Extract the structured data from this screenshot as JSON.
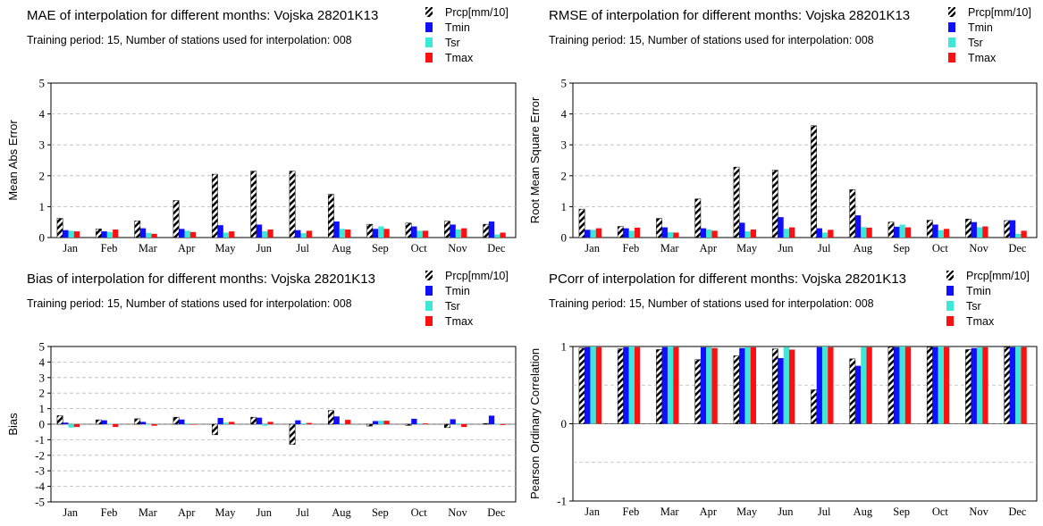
{
  "series_colors": {
    "Prcp[mm/10]": "hatched-black",
    "Tmin": "#1010ff",
    "Tsr": "#3ee8d8",
    "Tmax": "#ff1010"
  },
  "legend_labels": [
    "Prcp[mm/10]",
    "Tmin",
    "Tsr",
    "Tmax"
  ],
  "panels": [
    {
      "title": "MAE of interpolation for different months: Vojska  28201K13",
      "subtitle": "Training period: 15, Number of stations used for interpolation: 008"
    },
    {
      "title": "RMSE of interpolation for different months: Vojska  28201K13",
      "subtitle": "Training period: 15, Number of stations used for interpolation: 008"
    },
    {
      "title": "Bias of interpolation for different months: Vojska  28201K13",
      "subtitle": "Training period: 15, Number of stations used for interpolation: 008"
    },
    {
      "title": "PCorr of interpolation for different months: Vojska  28201K13",
      "subtitle": "Training period: 15, Number of stations used for interpolation: 008"
    }
  ],
  "chart_data": [
    {
      "type": "bar",
      "categories": [
        "Jan",
        "Feb",
        "Mar",
        "Apr",
        "May",
        "Jun",
        "Jul",
        "Aug",
        "Sep",
        "Oct",
        "Nov",
        "Dec"
      ],
      "ylabel": "Mean Abs Error",
      "ylim": [
        0,
        5
      ],
      "yticks": [
        "0",
        "1",
        "2",
        "3",
        "4",
        "5"
      ],
      "grid": "dashed-horizontal",
      "series": [
        {
          "name": "Prcp[mm/10]",
          "values": [
            0.62,
            0.28,
            0.54,
            1.2,
            2.05,
            2.15,
            2.15,
            1.4,
            0.43,
            0.47,
            0.53,
            0.43
          ]
        },
        {
          "name": "Tmin",
          "values": [
            0.24,
            0.2,
            0.3,
            0.28,
            0.4,
            0.42,
            0.24,
            0.52,
            0.28,
            0.36,
            0.42,
            0.52
          ]
        },
        {
          "name": "Tsr",
          "values": [
            0.22,
            0.18,
            0.15,
            0.22,
            0.16,
            0.2,
            0.14,
            0.28,
            0.36,
            0.22,
            0.26,
            0.1
          ]
        },
        {
          "name": "Tmax",
          "values": [
            0.2,
            0.26,
            0.12,
            0.18,
            0.2,
            0.26,
            0.22,
            0.26,
            0.28,
            0.22,
            0.3,
            0.16
          ]
        }
      ]
    },
    {
      "type": "bar",
      "categories": [
        "Jan",
        "Feb",
        "Mar",
        "Apr",
        "May",
        "Jun",
        "Jul",
        "Aug",
        "Sep",
        "Oct",
        "Nov",
        "Dec"
      ],
      "ylabel": "Root Mean Square Error",
      "ylim": [
        0,
        5
      ],
      "yticks": [
        "0",
        "1",
        "2",
        "3",
        "4",
        "5"
      ],
      "grid": "dashed-horizontal",
      "series": [
        {
          "name": "Prcp[mm/10]",
          "values": [
            0.92,
            0.36,
            0.62,
            1.25,
            2.28,
            2.18,
            3.62,
            1.55,
            0.5,
            0.56,
            0.6,
            0.55
          ]
        },
        {
          "name": "Tmin",
          "values": [
            0.25,
            0.3,
            0.33,
            0.3,
            0.48,
            0.66,
            0.3,
            0.72,
            0.35,
            0.42,
            0.5,
            0.56
          ]
        },
        {
          "name": "Tsr",
          "values": [
            0.25,
            0.22,
            0.17,
            0.26,
            0.2,
            0.28,
            0.16,
            0.34,
            0.42,
            0.24,
            0.33,
            0.12
          ]
        },
        {
          "name": "Tmax",
          "values": [
            0.3,
            0.32,
            0.16,
            0.22,
            0.26,
            0.33,
            0.25,
            0.32,
            0.33,
            0.28,
            0.36,
            0.22
          ]
        }
      ]
    },
    {
      "type": "bar",
      "categories": [
        "Jan",
        "Feb",
        "Mar",
        "Apr",
        "May",
        "Jun",
        "Jul",
        "Aug",
        "Sep",
        "Oct",
        "Nov",
        "Dec"
      ],
      "ylabel": "Bias",
      "ylim": [
        -5,
        5
      ],
      "yticks": [
        "-5",
        "-4",
        "-3",
        "-2",
        "-1",
        "0",
        "1",
        "2",
        "3",
        "4",
        "5"
      ],
      "grid": "dashed-horizontal",
      "series": [
        {
          "name": "Prcp[mm/10]",
          "values": [
            0.55,
            0.28,
            0.35,
            0.45,
            -0.68,
            0.45,
            -1.3,
            0.88,
            -0.12,
            -0.08,
            -0.22,
            0.05
          ]
        },
        {
          "name": "Tmin",
          "values": [
            0.1,
            0.25,
            0.15,
            0.3,
            0.4,
            0.42,
            0.25,
            0.5,
            0.2,
            0.35,
            0.32,
            0.55
          ]
        },
        {
          "name": "Tsr",
          "values": [
            -0.22,
            0.02,
            0.0,
            0.05,
            0.1,
            -0.1,
            0.05,
            0.05,
            0.22,
            0.05,
            0.05,
            0.02
          ]
        },
        {
          "name": "Tmax",
          "values": [
            -0.18,
            -0.18,
            -0.1,
            -0.02,
            0.15,
            0.15,
            0.08,
            0.28,
            0.22,
            0.05,
            -0.18,
            -0.05
          ]
        }
      ]
    },
    {
      "type": "bar",
      "categories": [
        "Jan",
        "Feb",
        "Mar",
        "Apr",
        "May",
        "Jun",
        "Jul",
        "Aug",
        "Sep",
        "Oct",
        "Nov",
        "Dec"
      ],
      "ylabel": "Pearson Ordinary Correlation",
      "ylim": [
        -1,
        1
      ],
      "yticks": [
        "-1",
        "0",
        "1"
      ],
      "grid": "dashed-horizontal",
      "series": [
        {
          "name": "Prcp[mm/10]",
          "values": [
            0.98,
            0.97,
            0.96,
            0.83,
            0.88,
            0.97,
            0.44,
            0.84,
            0.99,
            0.99,
            0.96,
            0.99
          ]
        },
        {
          "name": "Tmin",
          "values": [
            0.99,
            0.99,
            0.99,
            0.99,
            0.98,
            0.85,
            0.99,
            0.75,
            0.99,
            0.99,
            0.98,
            0.99
          ]
        },
        {
          "name": "Tsr",
          "values": [
            1.0,
            1.0,
            1.0,
            0.99,
            0.99,
            0.99,
            1.0,
            0.99,
            1.0,
            1.0,
            0.99,
            1.0
          ]
        },
        {
          "name": "Tmax",
          "values": [
            0.99,
            0.99,
            0.99,
            0.98,
            0.99,
            0.96,
            0.99,
            0.99,
            0.99,
            0.99,
            0.99,
            0.99
          ]
        }
      ]
    }
  ]
}
